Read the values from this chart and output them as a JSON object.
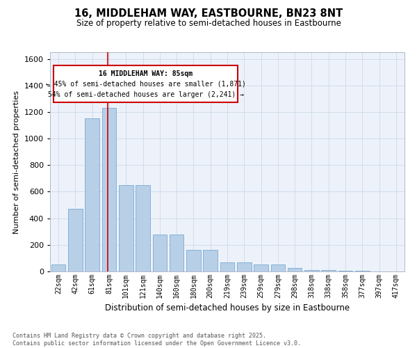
{
  "title1": "16, MIDDLEHAM WAY, EASTBOURNE, BN23 8NT",
  "title2": "Size of property relative to semi-detached houses in Eastbourne",
  "xlabel": "Distribution of semi-detached houses by size in Eastbourne",
  "ylabel": "Number of semi-detached properties",
  "categories": [
    "22sqm",
    "42sqm",
    "61sqm",
    "81sqm",
    "101sqm",
    "121sqm",
    "140sqm",
    "160sqm",
    "180sqm",
    "200sqm",
    "219sqm",
    "239sqm",
    "259sqm",
    "279sqm",
    "298sqm",
    "318sqm",
    "338sqm",
    "358sqm",
    "377sqm",
    "397sqm",
    "417sqm"
  ],
  "values": [
    55,
    470,
    1150,
    1230,
    650,
    650,
    280,
    280,
    165,
    165,
    70,
    70,
    50,
    50,
    25,
    10,
    8,
    4,
    4,
    2,
    1
  ],
  "bar_color": "#b8cfe8",
  "bar_edgecolor": "#7aaad0",
  "vline_index": 3,
  "vline_color": "#cc0000",
  "ylim": [
    0,
    1650
  ],
  "yticks": [
    0,
    200,
    400,
    600,
    800,
    1000,
    1200,
    1400,
    1600
  ],
  "annotation_title": "16 MIDDLEHAM WAY: 85sqm",
  "annotation_line1": "← 45% of semi-detached houses are smaller (1,871)",
  "annotation_line2": "54% of semi-detached houses are larger (2,241) →",
  "annotation_box_edgecolor": "#cc0000",
  "footer1": "Contains HM Land Registry data © Crown copyright and database right 2025.",
  "footer2": "Contains public sector information licensed under the Open Government Licence v3.0.",
  "grid_color": "#ccd8ea",
  "bg_color": "#edf2fa"
}
